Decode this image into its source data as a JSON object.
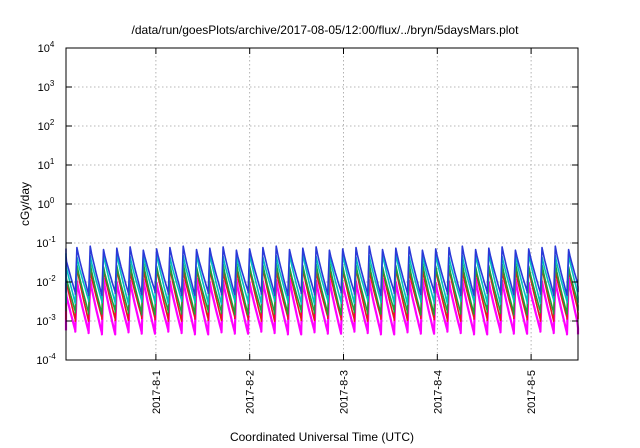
{
  "chart_data": {
    "type": "line",
    "title": "/data/run/goesPlots/archive/2017-08-05/12:00/flux/../bryn/5daysMars.plot",
    "xlabel": "Coordinated Universal Time (UTC)",
    "ylabel": "cGy/day",
    "y_scale": "log",
    "ylim": [
      0.0001,
      10000
    ],
    "y_ticks": [
      {
        "base": "10",
        "exp": "4",
        "value": 10000
      },
      {
        "base": "10",
        "exp": "3",
        "value": 1000
      },
      {
        "base": "10",
        "exp": "2",
        "value": 100
      },
      {
        "base": "10",
        "exp": "1",
        "value": 10
      },
      {
        "base": "10",
        "exp": "0",
        "value": 1
      },
      {
        "base": "10",
        "exp": "-1",
        "value": 0.1
      },
      {
        "base": "10",
        "exp": "-2",
        "value": 0.01
      },
      {
        "base": "10",
        "exp": "-3",
        "value": 0.001
      },
      {
        "base": "10",
        "exp": "-4",
        "value": 0.0001
      }
    ],
    "xlim": [
      "2017-07-31 01:00",
      "2017-08-05 12:00"
    ],
    "x_ticks": [
      {
        "label": "2017-8-1",
        "date": "2017-08-01"
      },
      {
        "label": "2017-8-2",
        "date": "2017-08-02"
      },
      {
        "label": "2017-8-3",
        "date": "2017-08-03"
      },
      {
        "label": "2017-8-4",
        "date": "2017-08-04"
      },
      {
        "label": "2017-8-5",
        "date": "2017-08-05"
      }
    ],
    "grid": true,
    "legend": "none",
    "oscillation_period_hours": 3.4,
    "series": [
      {
        "color": "#ff00ff",
        "peak": 0.011,
        "trough": 0.0005
      },
      {
        "color": "#e41a1c",
        "peak": 0.022,
        "trough": 0.0011
      },
      {
        "color": "#1f9e3a",
        "peak": 0.028,
        "trough": 0.0016
      },
      {
        "color": "#00c0c0",
        "peak": 0.05,
        "trough": 0.003
      },
      {
        "color": "#2a39d8",
        "peak": 0.075,
        "trough": 0.005
      }
    ]
  }
}
